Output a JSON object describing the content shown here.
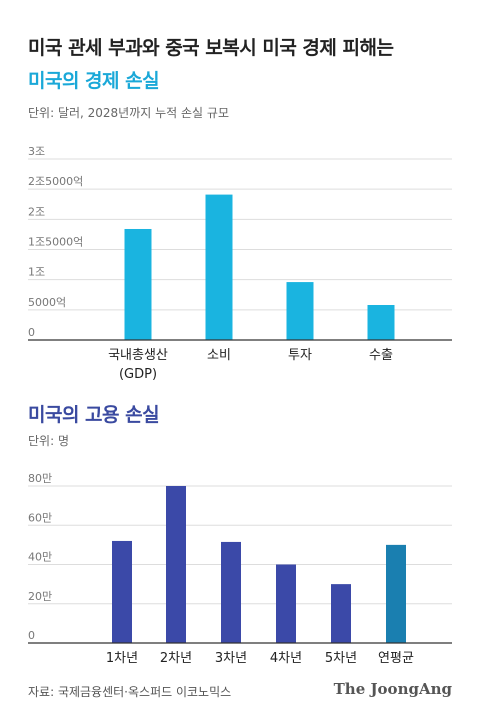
{
  "title": "미국 관세 부과와 중국 보복시 미국 경제 피해는",
  "source": "자료: 국제금융센터·옥스퍼드 이코노믹스",
  "brand": "The JoongAng",
  "colors": {
    "cyan": "#1ab4e0",
    "indigo": "#3b49a8",
    "teal": "#1a7fb0",
    "axis": "#333333",
    "grid": "#dddddd",
    "label": "#777777"
  },
  "chart_data": [
    {
      "type": "bar",
      "title": "미국의 경제 손실",
      "unit_note": "단위: 달러, 2028년까지 누적 손실 규모",
      "categories": [
        [
          "국내총생산",
          "(GDP)"
        ],
        [
          "소비"
        ],
        [
          "투자"
        ],
        [
          "수출"
        ]
      ],
      "values": [
        1840000000000,
        2410000000000,
        960000000000,
        580000000000
      ],
      "ylim": [
        0,
        3000000000000
      ],
      "yticks": [
        0,
        500000000000,
        1000000000000,
        1500000000000,
        2000000000000,
        2500000000000,
        3000000000000
      ],
      "ytick_labels": [
        "0",
        "5000억",
        "1조",
        "1조5000억",
        "2조",
        "2조5000억",
        "3조"
      ],
      "bar_colors": [
        "#1ab4e0",
        "#1ab4e0",
        "#1ab4e0",
        "#1ab4e0"
      ],
      "grid": true
    },
    {
      "type": "bar",
      "title": "미국의 고용 손실",
      "unit_note": "단위: 명",
      "categories": [
        [
          "1차년"
        ],
        [
          "2차년"
        ],
        [
          "3차년"
        ],
        [
          "4차년"
        ],
        [
          "5차년"
        ],
        [
          "연평균"
        ]
      ],
      "values": [
        520000,
        800000,
        515000,
        400000,
        300000,
        500000
      ],
      "ylim": [
        0,
        800000
      ],
      "yticks": [
        0,
        200000,
        400000,
        600000,
        800000
      ],
      "ytick_labels": [
        "0",
        "20만",
        "40만",
        "60만",
        "80만"
      ],
      "bar_colors": [
        "#3b49a8",
        "#3b49a8",
        "#3b49a8",
        "#3b49a8",
        "#3b49a8",
        "#1a7fb0"
      ],
      "grid": true
    }
  ]
}
